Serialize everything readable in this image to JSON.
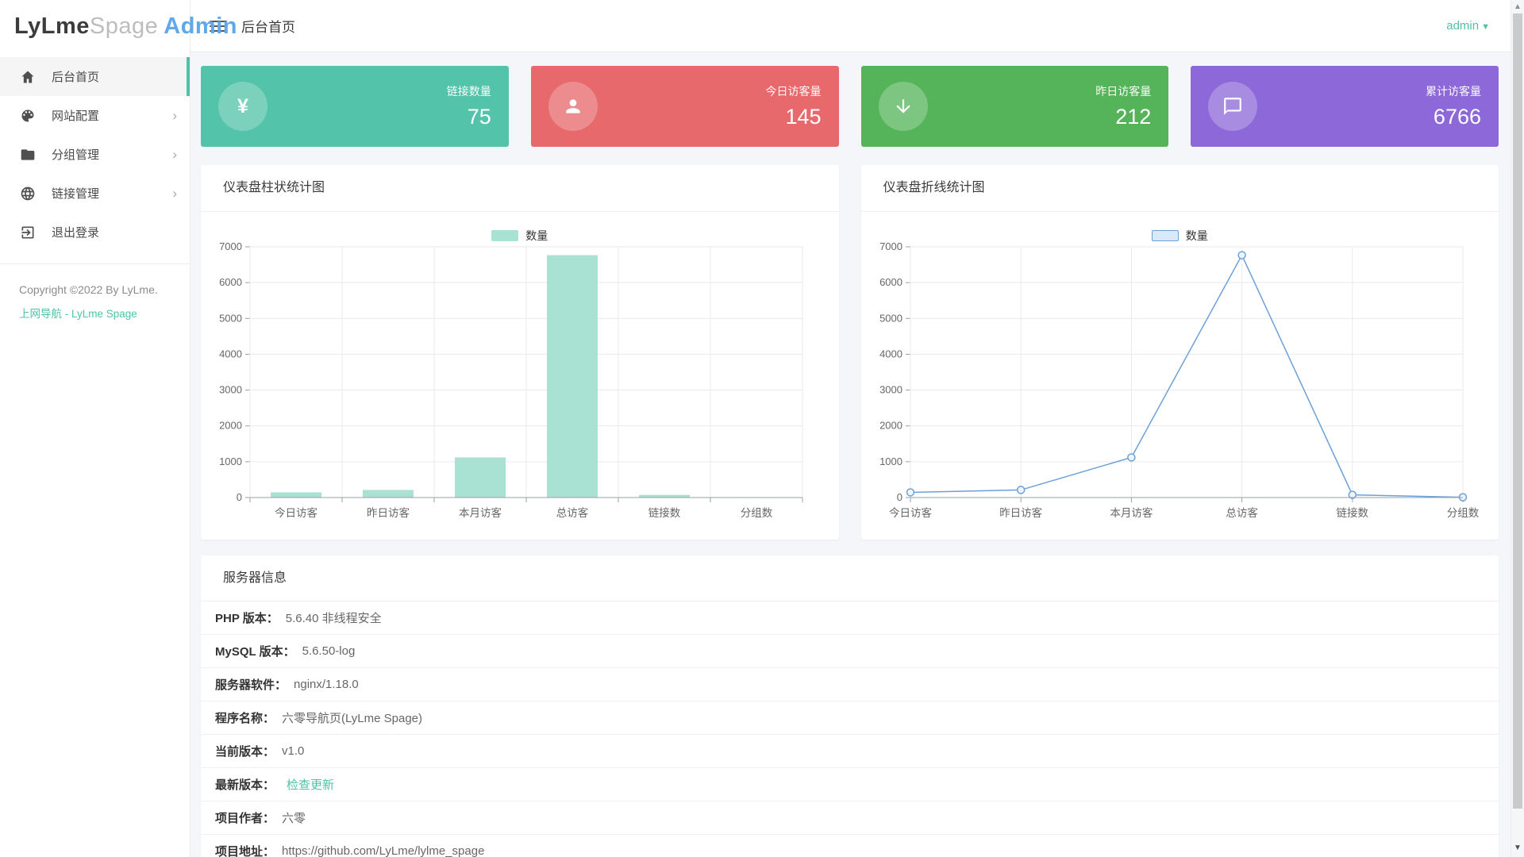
{
  "brand": {
    "part1": "LyLme",
    "part2": "Spage",
    "part3": "Admin"
  },
  "topbar": {
    "title": "后台首页",
    "user": "admin"
  },
  "sidebar": {
    "items": [
      {
        "label": "后台首页",
        "icon": "home-icon",
        "active": true,
        "has_submenu": false
      },
      {
        "label": "网站配置",
        "icon": "palette-icon",
        "active": false,
        "has_submenu": true
      },
      {
        "label": "分组管理",
        "icon": "folder-icon",
        "active": false,
        "has_submenu": true
      },
      {
        "label": "链接管理",
        "icon": "globe-icon",
        "active": false,
        "has_submenu": true
      },
      {
        "label": "退出登录",
        "icon": "logout-icon",
        "active": false,
        "has_submenu": false
      }
    ],
    "copyright": "Copyright ©2022 By LyLme.",
    "footer_link": "上网导航 - LyLme Spage"
  },
  "stat_cards": [
    {
      "label": "链接数量",
      "value": "75",
      "color": "#53c3a9",
      "icon": "yen-icon"
    },
    {
      "label": "今日访客量",
      "value": "145",
      "color": "#e8696c",
      "icon": "person-icon"
    },
    {
      "label": "昨日访客量",
      "value": "212",
      "color": "#55b45a",
      "icon": "arrow-down-icon"
    },
    {
      "label": "累计访客量",
      "value": "6766",
      "color": "#8c68d8",
      "icon": "chat-bubble-icon"
    }
  ],
  "chart_data": [
    {
      "type": "bar",
      "title": "仪表盘柱状统计图",
      "legend": [
        "数量"
      ],
      "categories": [
        "今日访客",
        "昨日访客",
        "本月访客",
        "总访客",
        "链接数",
        "分组数"
      ],
      "values": [
        145,
        212,
        1120,
        6766,
        75,
        8
      ],
      "xlabel": "",
      "ylabel": "",
      "ylim": [
        0,
        7000
      ],
      "ytick_interval": 1000,
      "grid": true,
      "legend_position": "top-center",
      "bar_color": "#a9e2d2"
    },
    {
      "type": "line",
      "title": "仪表盘折线统计图",
      "legend": [
        "数量"
      ],
      "categories": [
        "今日访客",
        "昨日访客",
        "本月访客",
        "总访客",
        "链接数",
        "分组数"
      ],
      "values": [
        145,
        212,
        1120,
        6766,
        75,
        8
      ],
      "xlabel": "",
      "ylabel": "",
      "ylim": [
        0,
        7000
      ],
      "ytick_interval": 1000,
      "grid": true,
      "legend_position": "top-center",
      "line_color": "#6da0d8",
      "marker_fill": "#ecf4fc"
    }
  ],
  "server_info": {
    "title": "服务器信息",
    "rows": [
      {
        "label": "PHP 版本：",
        "value": "5.6.40 非线程安全",
        "link": false
      },
      {
        "label": "MySQL 版本：",
        "value": "5.6.50-log",
        "link": false
      },
      {
        "label": "服务器软件：",
        "value": "nginx/1.18.0",
        "link": false
      },
      {
        "label": "程序名称：",
        "value": "六零导航页(LyLme Spage)",
        "link": false
      },
      {
        "label": "当前版本：",
        "value": "v1.0",
        "link": false
      },
      {
        "label": "最新版本：",
        "value": "检查更新",
        "link": true
      },
      {
        "label": "项目作者：",
        "value": "六零",
        "link": false
      },
      {
        "label": "项目地址：",
        "value": "https://github.com/LyLme/lylme_spage",
        "link": false
      }
    ]
  },
  "colors": {
    "accent_teal": "#4ec3a7",
    "logo_blue": "#5fa8ec",
    "bar_fill": "#a9e2d2",
    "line_blue": "#6da0d8",
    "content_bg": "#f4f6f9",
    "axis_text": "#666666",
    "grid_line": "#e9e9e9"
  }
}
